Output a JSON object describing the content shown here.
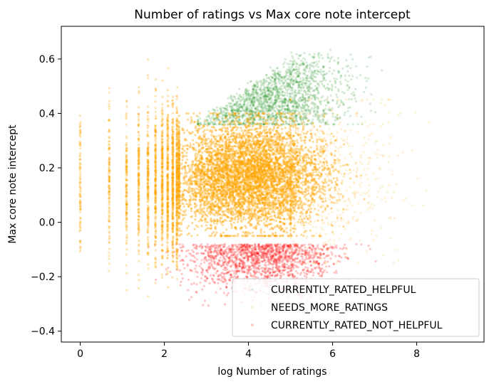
{
  "chart_data": {
    "type": "scatter",
    "title": "Number of ratings vs Max core note intercept",
    "xlabel": "log Number of ratings",
    "ylabel": "Max core note intercept",
    "xlim": [
      -0.45,
      9.6
    ],
    "ylim": [
      -0.44,
      0.72
    ],
    "xticks": [
      0,
      2,
      4,
      6,
      8
    ],
    "yticks": [
      -0.4,
      -0.2,
      0.0,
      0.2,
      0.4,
      0.6
    ],
    "xtick_labels": [
      "0",
      "2",
      "4",
      "6",
      "8"
    ],
    "ytick_labels": [
      "−0.4",
      "−0.2",
      "0.0",
      "0.2",
      "0.4",
      "0.6"
    ],
    "grid": false,
    "legend_position": "lower right",
    "series": [
      {
        "name": "CURRENTLY_RATED_HELPFUL",
        "color": "#008000",
        "x_range": [
          2.8,
          9.2
        ],
        "y_range": [
          0.36,
          0.66
        ],
        "dense_region": {
          "x": [
            3.5,
            6.0
          ],
          "y": [
            0.38,
            0.58
          ]
        }
      },
      {
        "name": "NEEDS_MORE_RATINGS",
        "color": "#ffa500",
        "x_range": [
          0.0,
          8.8
        ],
        "y_range": [
          -0.37,
          0.6
        ],
        "dense_region": {
          "x": [
            2.5,
            5.6
          ],
          "y": [
            -0.05,
            0.4
          ]
        },
        "discrete_x_columns": [
          0.0,
          0.69,
          1.1,
          1.39,
          1.61,
          1.79,
          1.95,
          2.08,
          2.2,
          2.3
        ]
      },
      {
        "name": "CURRENTLY_RATED_NOT_HELPFUL",
        "color": "#ff0000",
        "x_range": [
          1.6,
          8.0
        ],
        "y_range": [
          -0.35,
          -0.04
        ],
        "dense_region": {
          "x": [
            2.5,
            5.5
          ],
          "y": [
            -0.2,
            -0.08
          ]
        }
      }
    ]
  }
}
